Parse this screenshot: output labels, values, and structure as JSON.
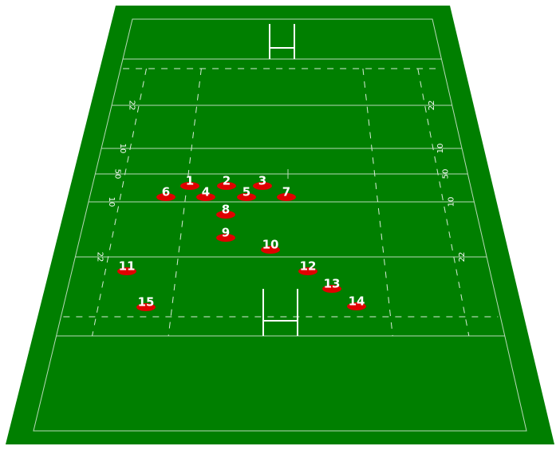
{
  "field_labels": {
    "left": [
      "22",
      "10",
      "50",
      "10",
      "22"
    ],
    "right": [
      "22",
      "10",
      "50",
      "10",
      "22"
    ]
  },
  "players": [
    {
      "label": "1"
    },
    {
      "label": "2"
    },
    {
      "label": "3"
    },
    {
      "label": "4"
    },
    {
      "label": "5"
    },
    {
      "label": "6"
    },
    {
      "label": "7"
    },
    {
      "label": "8"
    },
    {
      "label": "9"
    },
    {
      "label": "10"
    },
    {
      "label": "11"
    },
    {
      "label": "12"
    },
    {
      "label": "13"
    },
    {
      "label": "14"
    },
    {
      "label": "15"
    }
  ]
}
